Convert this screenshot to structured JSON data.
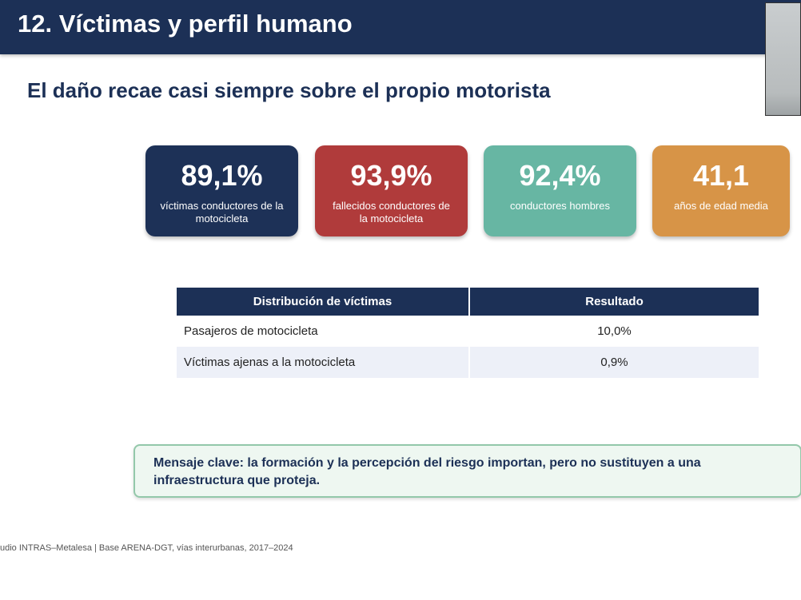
{
  "header": {
    "title": "12. Víctimas y perfil humano"
  },
  "subtitle": "El daño recae casi siempre sobre el propio motorista",
  "cards": [
    {
      "value": "89,1%",
      "label": "víctimas conductores de la motocicleta"
    },
    {
      "value": "93,9%",
      "label": "fallecidos conductores de la motocicleta"
    },
    {
      "value": "92,4%",
      "label": "conductores hombres"
    },
    {
      "value": "41,1",
      "label": "años de edad media"
    }
  ],
  "table": {
    "columns": [
      "Distribución de víctimas",
      "Resultado"
    ],
    "rows": [
      [
        "Pasajeros de motocicleta",
        "10,0%"
      ],
      [
        "Víctimas ajenas a la motocicleta",
        "0,9%"
      ]
    ]
  },
  "message": "Mensaje clave: la formación y la percepción del riesgo importan, pero no sustituyen a una infraestructura que proteja.",
  "source": "udio INTRAS–Metalesa | Base ARENA-DGT, vías interurbanas, 2017–2024"
}
